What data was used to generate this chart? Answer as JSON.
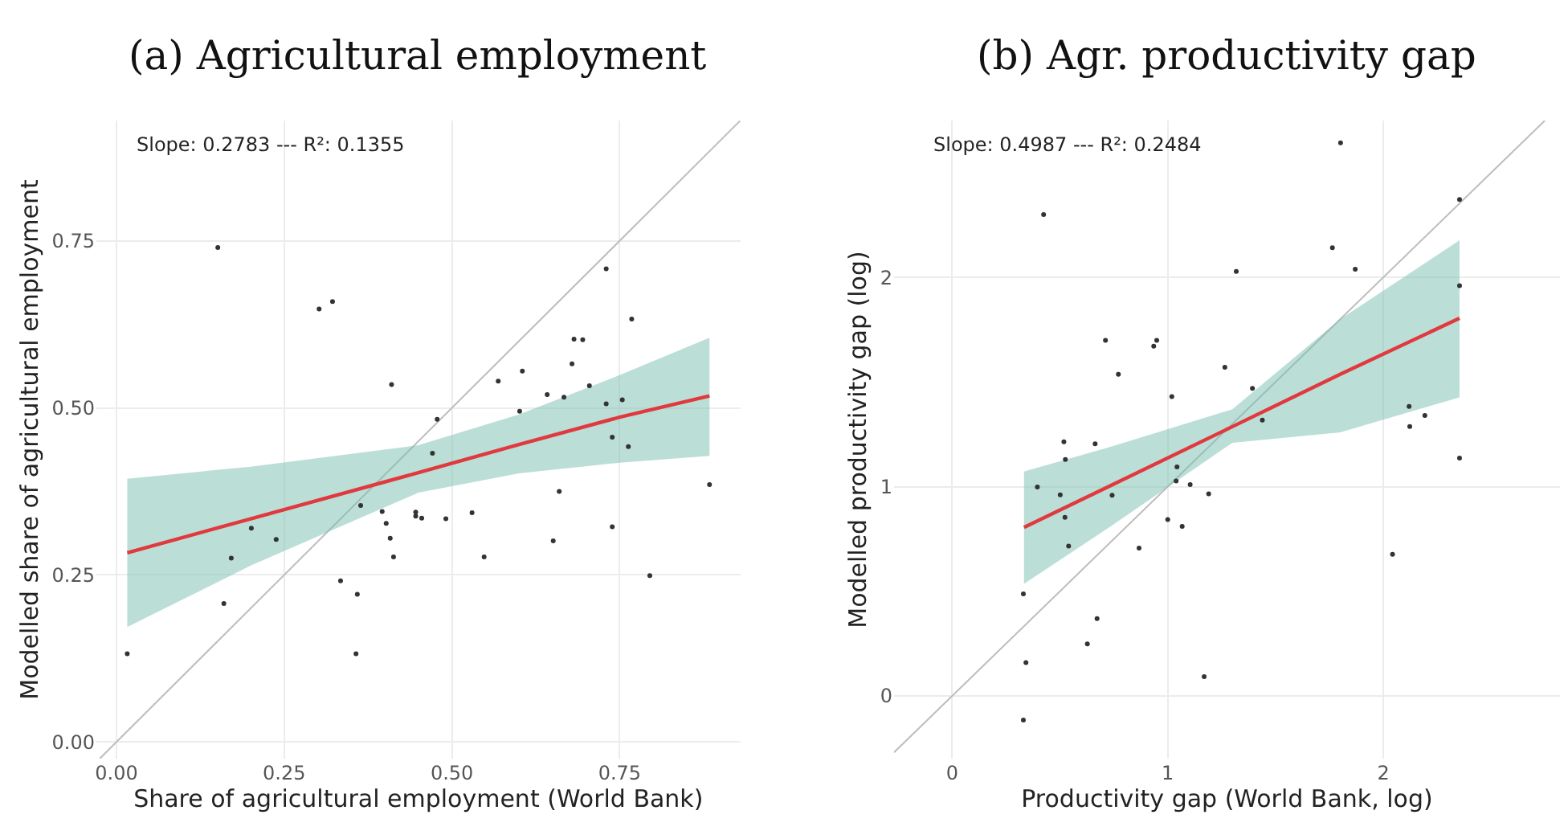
{
  "chart_data": [
    {
      "type": "scatter",
      "title": "(a) Agricultural employment",
      "xlabel": "Share of agricultural employment (World Bank)",
      "ylabel": "Modelled share of agricultural employment",
      "annotations": [
        "Slope: 0.2783 --- R²: 0.1355"
      ],
      "xlim": [
        -0.03,
        0.93
      ],
      "ylim": [
        -0.025,
        0.93
      ],
      "xticks": [
        {
          "value": 0,
          "label": "0.00"
        },
        0.25,
        {
          "value": 0.5,
          "label": "0.50"
        },
        0.75
      ],
      "yticks": [
        {
          "value": 0,
          "label": "0.00"
        },
        0.25,
        {
          "value": 0.5,
          "label": "0.50"
        },
        0.75
      ],
      "grid": true,
      "marker": "circle",
      "series": [
        {
          "type": "line",
          "marker": "none",
          "color": "#bdbdbd",
          "x": [
            -0.025,
            0.93
          ],
          "values": [
            -0.025,
            0.93
          ]
        },
        {
          "type": "line",
          "marker": "none",
          "color": "#e0393e",
          "x": [
            0.016,
            0.2,
            0.45,
            0.6,
            0.75,
            0.884
          ],
          "values": [
            0.283,
            0.334,
            0.403,
            0.445,
            0.486,
            0.518
          ],
          "lower": [
            0.172,
            0.264,
            0.373,
            0.402,
            0.418,
            0.428
          ],
          "upper": [
            0.394,
            0.412,
            0.444,
            0.49,
            0.549,
            0.605
          ]
        },
        {
          "color": "#333333",
          "x": [
            0.151,
            0.302,
            0.322,
            0.41,
            0.478,
            0.471,
            0.364,
            0.396,
            0.402,
            0.408,
            0.413,
            0.446,
            0.446,
            0.455,
            0.491,
            0.53,
            0.548,
            0.334,
            0.359,
            0.357,
            0.016,
            0.16,
            0.171,
            0.201,
            0.238,
            0.569,
            0.605,
            0.601,
            0.642,
            0.667,
            0.679,
            0.682,
            0.695,
            0.705,
            0.73,
            0.73,
            0.754,
            0.739,
            0.763,
            0.768,
            0.66,
            0.651,
            0.739,
            0.795,
            0.884
          ],
          "values": [
            0.74,
            0.648,
            0.659,
            0.535,
            0.483,
            0.432,
            0.354,
            0.345,
            0.327,
            0.305,
            0.277,
            0.344,
            0.338,
            0.335,
            0.334,
            0.343,
            0.277,
            0.241,
            0.221,
            0.132,
            0.132,
            0.207,
            0.275,
            0.32,
            0.303,
            0.54,
            0.555,
            0.495,
            0.52,
            0.516,
            0.566,
            0.603,
            0.602,
            0.533,
            0.708,
            0.506,
            0.512,
            0.456,
            0.442,
            0.633,
            0.375,
            0.301,
            0.322,
            0.249,
            0.385
          ]
        }
      ]
    },
    {
      "type": "scatter",
      "title": "(b) Agr. productivity gap",
      "xlabel": "Productivity gap (World Bank, log)",
      "ylabel": "Modelled productivity gap (log)",
      "annotations": [
        "Slope: 0.4987 --- R²: 0.2484"
      ],
      "xlim": [
        -0.27,
        2.82
      ],
      "ylim": [
        -0.3,
        2.75
      ],
      "xticks": [
        0,
        1,
        2
      ],
      "yticks": [
        0,
        1,
        2
      ],
      "grid": true,
      "marker": "circle",
      "series": [
        {
          "type": "line",
          "marker": "none",
          "color": "#bdbdbd",
          "x": [
            -0.27,
            2.75
          ],
          "values": [
            -0.27,
            2.75
          ]
        },
        {
          "type": "line",
          "marker": "none",
          "color": "#e0393e",
          "x": [
            0.333,
            0.735,
            1.3,
            1.8,
            2.354
          ],
          "values": [
            0.805,
            1.005,
            1.287,
            1.537,
            1.805
          ],
          "lower": [
            0.535,
            0.81,
            1.21,
            1.26,
            1.427
          ],
          "upper": [
            1.072,
            1.19,
            1.37,
            1.8,
            2.178
          ]
        },
        {
          "color": "#333333",
          "x": [
            0.424,
            1.802,
            1.764,
            1.318,
            1.87,
            2.354,
            2.354,
            0.711,
            0.935,
            0.949,
            0.771,
            1.265,
            1.019,
            1.393,
            1.439,
            2.12,
            2.123,
            2.193,
            2.354,
            0.518,
            0.663,
            0.525,
            0.395,
            0.501,
            0.742,
            0.523,
            0.54,
            1.043,
            1.039,
            1.104,
            1.19,
            1.0,
            1.067,
            0.867,
            2.043,
            0.33,
            0.672,
            0.627,
            0.342,
            1.169,
            0.33
          ],
          "values": [
            2.301,
            2.643,
            2.142,
            2.029,
            2.039,
            2.373,
            1.961,
            1.699,
            1.672,
            1.699,
            1.537,
            1.571,
            1.431,
            1.47,
            1.318,
            1.383,
            1.287,
            1.34,
            1.137,
            1.214,
            1.205,
            1.13,
            0.998,
            0.961,
            0.959,
            0.853,
            0.716,
            1.094,
            1.027,
            1.01,
            0.966,
            0.843,
            0.81,
            0.706,
            0.677,
            0.487,
            0.369,
            0.248,
            0.159,
            0.092,
            -0.116
          ]
        }
      ]
    }
  ]
}
